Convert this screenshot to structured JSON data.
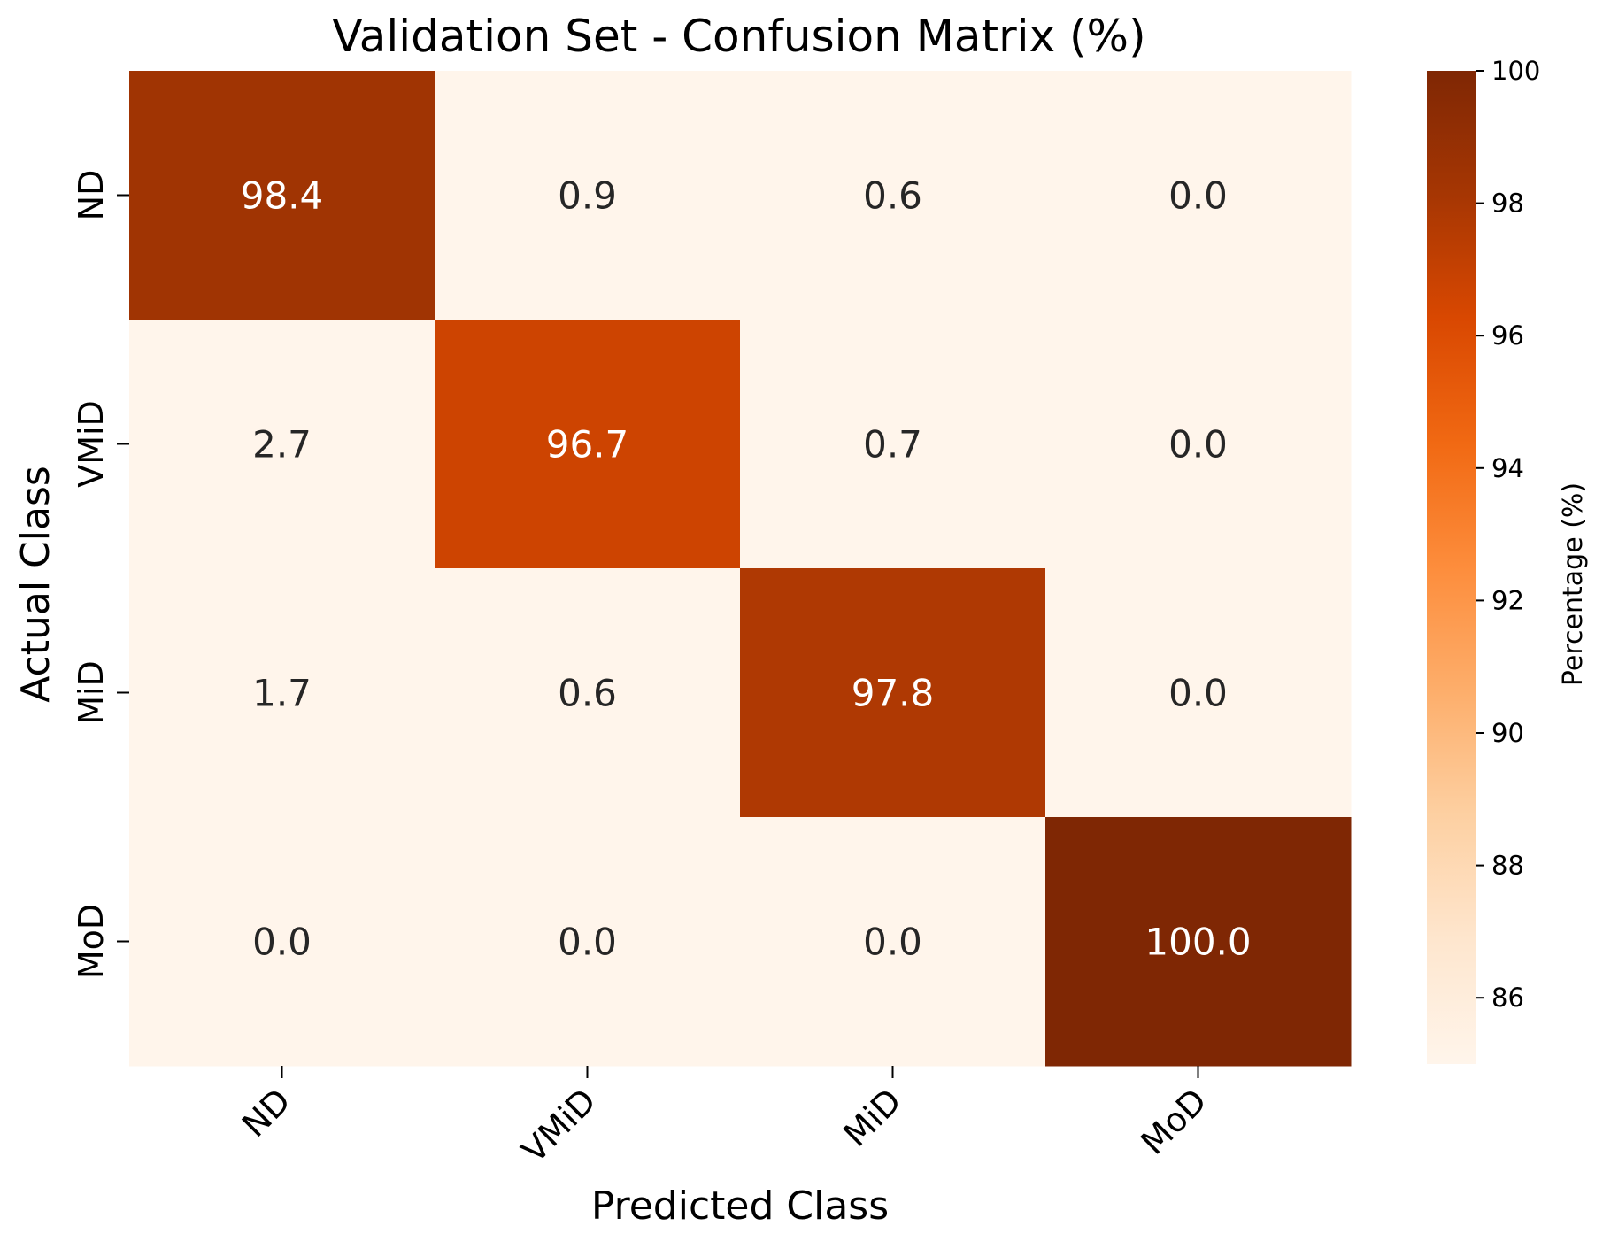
{
  "chart_data": {
    "type": "heatmap",
    "title": "Validation Set - Confusion Matrix (%)",
    "xlabel": "Predicted Class",
    "ylabel": "Actual Class",
    "x_categories": [
      "ND",
      "VMiD",
      "MiD",
      "MoD"
    ],
    "y_categories": [
      "ND",
      "VMiD",
      "MiD",
      "MoD"
    ],
    "values": [
      [
        98.4,
        0.9,
        0.6,
        0.0
      ],
      [
        2.7,
        96.7,
        0.7,
        0.0
      ],
      [
        1.7,
        0.6,
        97.8,
        0.0
      ],
      [
        0.0,
        0.0,
        0.0,
        100.0
      ]
    ],
    "value_labels": [
      [
        "98.4",
        "0.9",
        "0.6",
        "0.0"
      ],
      [
        "2.7",
        "96.7",
        "0.7",
        "0.0"
      ],
      [
        "1.7",
        "0.6",
        "97.8",
        "0.0"
      ],
      [
        "0.0",
        "0.0",
        "0.0",
        "100.0"
      ]
    ],
    "colorbar": {
      "label": "Percentage (%)",
      "range": [
        85,
        100
      ],
      "ticks": [
        86,
        88,
        90,
        92,
        94,
        96,
        98,
        100
      ],
      "tick_labels": [
        "86",
        "88",
        "90",
        "92",
        "94",
        "96",
        "98",
        "100"
      ],
      "colormap": "Oranges"
    },
    "colors": {
      "low": "#fff5eb",
      "high": "#7f2704"
    }
  }
}
